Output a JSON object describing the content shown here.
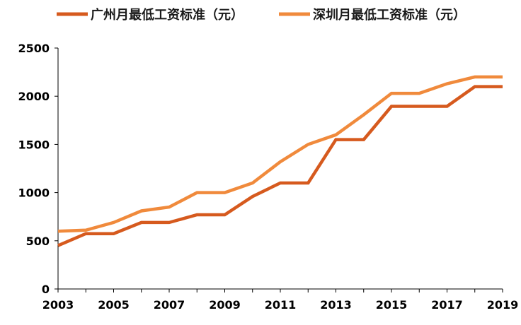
{
  "chart_data": {
    "type": "line",
    "x": [
      2003,
      2004,
      2005,
      2006,
      2007,
      2008,
      2009,
      2010,
      2011,
      2012,
      2013,
      2014,
      2015,
      2016,
      2017,
      2018,
      2019
    ],
    "series": [
      {
        "name": "广州月最低工资标准（元）",
        "color": "#d65a1e",
        "values": [
          450,
          574,
          574,
          690,
          690,
          770,
          770,
          960,
          1100,
          1100,
          1550,
          1550,
          1895,
          1895,
          1895,
          2100,
          2100
        ]
      },
      {
        "name": "深圳月最低工资标准（元）",
        "color": "#f08a3c",
        "values": [
          600,
          610,
          690,
          810,
          850,
          1000,
          1000,
          1100,
          1320,
          1500,
          1600,
          1808,
          2030,
          2030,
          2130,
          2200,
          2200
        ]
      }
    ],
    "x_tick_labels": [
      "2003",
      "2005",
      "2007",
      "2009",
      "2011",
      "2013",
      "2015",
      "2017",
      "2019"
    ],
    "y_tick_labels": [
      "0",
      "500",
      "1000",
      "1500",
      "2000",
      "2500"
    ],
    "ylim": [
      0,
      2500
    ],
    "xlim": [
      2003,
      2019
    ],
    "grid": false,
    "legend_position": "top"
  }
}
